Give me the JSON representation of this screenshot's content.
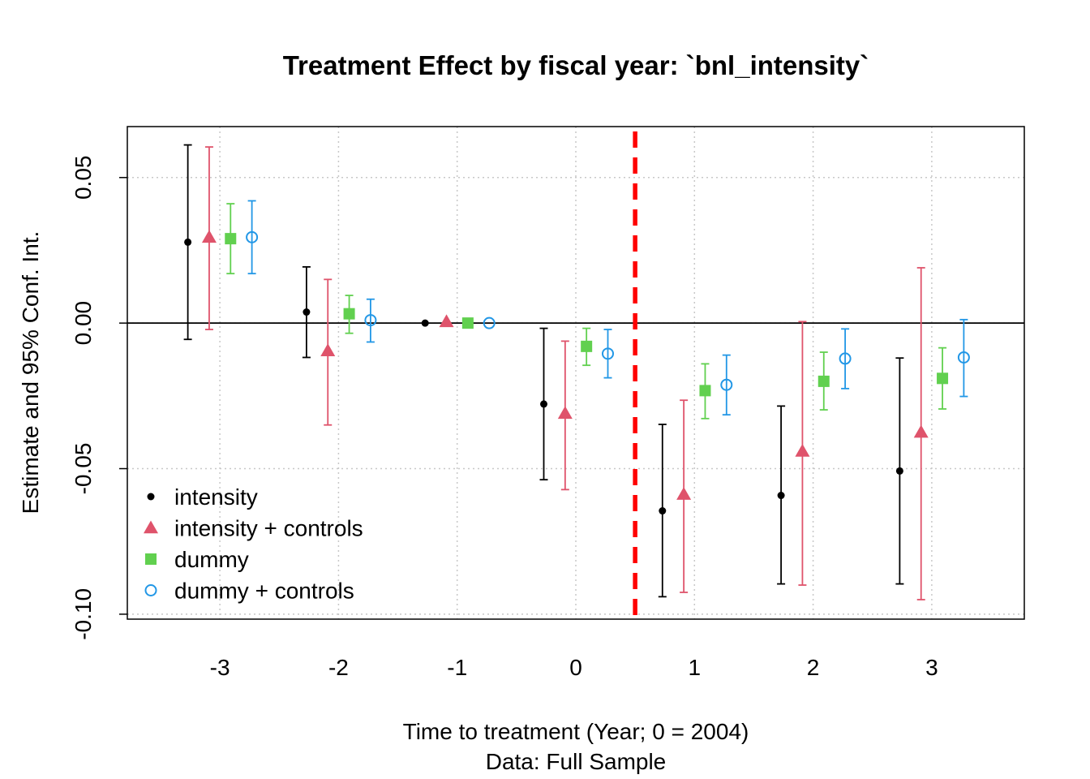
{
  "chart_data": {
    "type": "scatter",
    "subtype": "coefficient-plot-with-error-bars",
    "title": "Treatment Effect by fiscal year: `bnl_intensity`",
    "xlabel": "Time to treatment (Year; 0 = 2004)",
    "xlabel_sub": "Data: Full Sample",
    "ylabel": "Estimate and 95% Conf. Int.",
    "xlim": [
      -3.78,
      3.78
    ],
    "ylim": [
      -0.1017,
      0.0675
    ],
    "x_ticks": [
      -3,
      -2,
      -1,
      0,
      1,
      2,
      3
    ],
    "x_tick_labels": [
      "-3",
      "-2",
      "-1",
      "0",
      "1",
      "2",
      "3"
    ],
    "y_ticks": [
      -0.1,
      -0.05,
      0.0,
      0.05
    ],
    "y_tick_labels": [
      "-0.10",
      "-0.05",
      "0.00",
      "0.05"
    ],
    "grid": true,
    "zero_line": 0,
    "treatment_line_x": 0.5,
    "treatment_line_color": "#ff0000",
    "legend_position": "bottom-left",
    "series": [
      {
        "name": "intensity",
        "color": "#000000",
        "marker": "small-filled-circle",
        "x_offset": -0.27,
        "points": [
          {
            "x": -3,
            "y": 0.0278,
            "lo": -0.0056,
            "hi": 0.0612
          },
          {
            "x": -2,
            "y": 0.0038,
            "lo": -0.0118,
            "hi": 0.0193
          },
          {
            "x": -1,
            "y": 0.0,
            "lo": 0.0,
            "hi": 0.0
          },
          {
            "x": 0,
            "y": -0.0278,
            "lo": -0.0538,
            "hi": -0.0018
          },
          {
            "x": 1,
            "y": -0.0645,
            "lo": -0.094,
            "hi": -0.0348
          },
          {
            "x": 2,
            "y": -0.0592,
            "lo": -0.0896,
            "hi": -0.0285
          },
          {
            "x": 3,
            "y": -0.0508,
            "lo": -0.0896,
            "hi": -0.012
          }
        ]
      },
      {
        "name": "intensity + controls",
        "color": "#df536b",
        "marker": "filled-triangle",
        "x_offset": -0.09,
        "points": [
          {
            "x": -3,
            "y": 0.0295,
            "lo": -0.0022,
            "hi": 0.0605
          },
          {
            "x": -2,
            "y": -0.0095,
            "lo": -0.035,
            "hi": 0.015
          },
          {
            "x": -1,
            "y": 0.0005,
            "lo": 0.0,
            "hi": 0.0
          },
          {
            "x": 0,
            "y": -0.031,
            "lo": -0.0572,
            "hi": -0.0062
          },
          {
            "x": 1,
            "y": -0.0588,
            "lo": -0.0925,
            "hi": -0.0265
          },
          {
            "x": 2,
            "y": -0.044,
            "lo": -0.09,
            "hi": 0.0005
          },
          {
            "x": 3,
            "y": -0.0375,
            "lo": -0.095,
            "hi": 0.019
          }
        ]
      },
      {
        "name": "dummy",
        "color": "#61d04f",
        "marker": "filled-square",
        "x_offset": 0.09,
        "points": [
          {
            "x": -3,
            "y": 0.029,
            "lo": 0.017,
            "hi": 0.041
          },
          {
            "x": -2,
            "y": 0.0032,
            "lo": -0.0035,
            "hi": 0.0095
          },
          {
            "x": -1,
            "y": 0.0,
            "lo": 0.0,
            "hi": 0.0
          },
          {
            "x": 0,
            "y": -0.008,
            "lo": -0.0145,
            "hi": -0.0018
          },
          {
            "x": 1,
            "y": -0.0232,
            "lo": -0.0328,
            "hi": -0.014
          },
          {
            "x": 2,
            "y": -0.02,
            "lo": -0.0298,
            "hi": -0.01
          },
          {
            "x": 3,
            "y": -0.019,
            "lo": -0.0295,
            "hi": -0.0085
          }
        ]
      },
      {
        "name": "dummy + controls",
        "color": "#2297e6",
        "marker": "open-circle",
        "x_offset": 0.27,
        "points": [
          {
            "x": -3,
            "y": 0.0295,
            "lo": 0.017,
            "hi": 0.042
          },
          {
            "x": -2,
            "y": 0.001,
            "lo": -0.0065,
            "hi": 0.0082
          },
          {
            "x": -1,
            "y": 0.0,
            "lo": 0.0,
            "hi": 0.0
          },
          {
            "x": 0,
            "y": -0.0105,
            "lo": -0.0188,
            "hi": -0.0022
          },
          {
            "x": 1,
            "y": -0.0212,
            "lo": -0.0315,
            "hi": -0.011
          },
          {
            "x": 2,
            "y": -0.0122,
            "lo": -0.0225,
            "hi": -0.002
          },
          {
            "x": 3,
            "y": -0.0118,
            "lo": -0.0252,
            "hi": 0.0012
          }
        ]
      }
    ]
  }
}
